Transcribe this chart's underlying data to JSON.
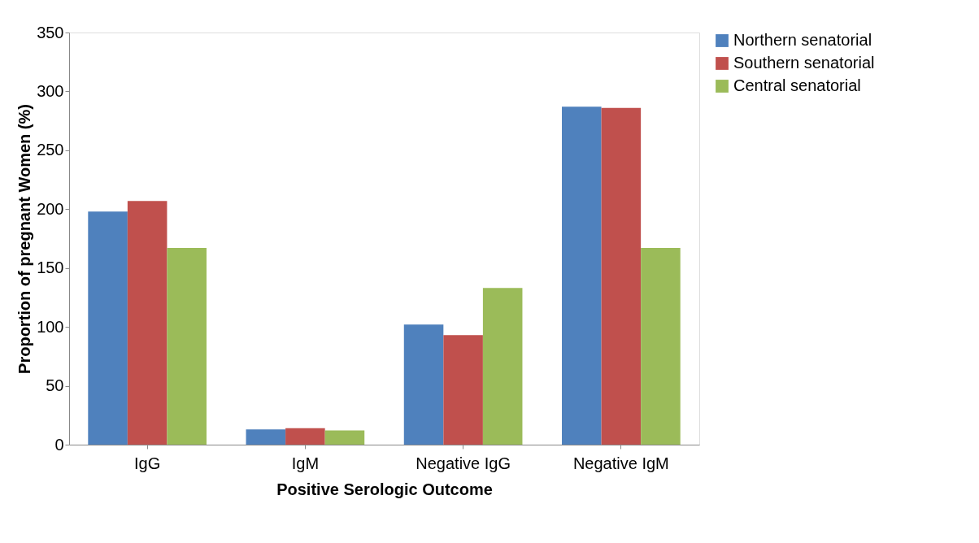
{
  "chart_data": {
    "type": "bar",
    "xlabel": "Positive Serologic Outcome",
    "ylabel": "Proportion of pregnant Women (%)",
    "categories": [
      "IgG",
      "IgM",
      "Negative IgG",
      "Negative IgM"
    ],
    "series": [
      {
        "name": "Northern senatorial",
        "color": "#4f81bd",
        "values": [
          198,
          13,
          102,
          287
        ]
      },
      {
        "name": "Southern senatorial",
        "color": "#c0504d",
        "values": [
          207,
          14,
          93,
          286
        ]
      },
      {
        "name": "Central senatorial",
        "color": "#9bbb59",
        "values": [
          167,
          12,
          133,
          167
        ]
      }
    ],
    "ylim": [
      0,
      350
    ],
    "yticks": [
      0,
      50,
      100,
      150,
      200,
      250,
      300,
      350
    ],
    "grid": false,
    "legend": "right"
  }
}
